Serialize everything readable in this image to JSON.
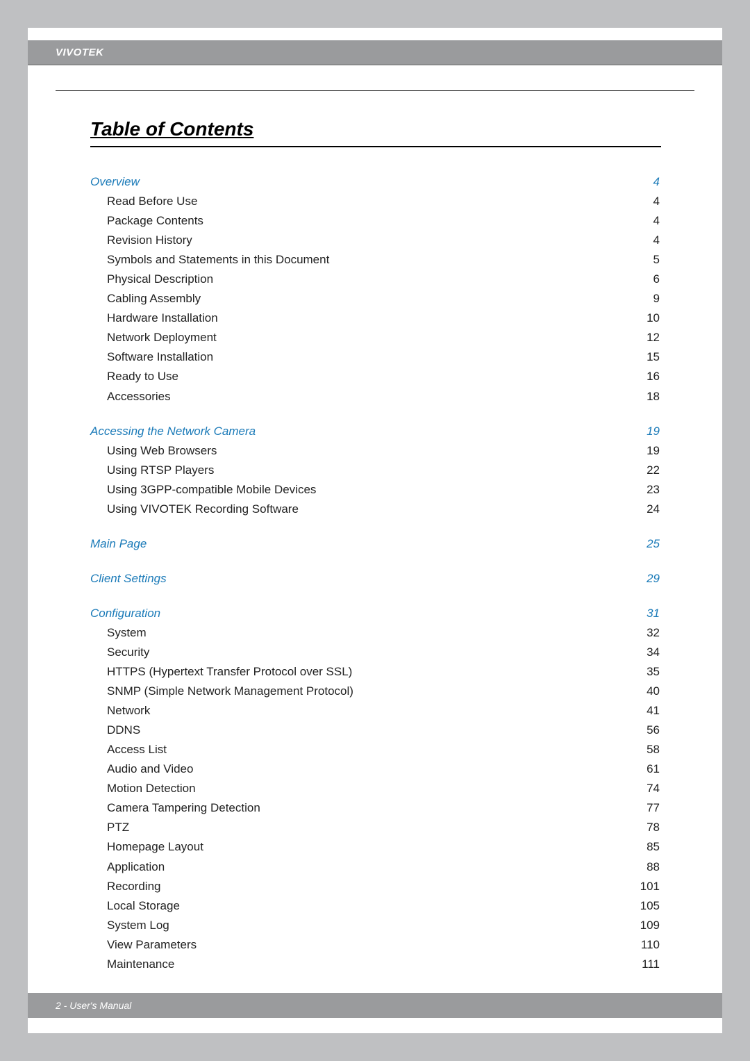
{
  "brand": "VIVOTEK",
  "footer": "2 - User's Manual",
  "toc_title": "Table of Contents",
  "colors": {
    "page_bg": "#bfc0c2",
    "paper_bg": "#ffffff",
    "bar_bg": "#9a9b9d",
    "link_color": "#1a7ab8",
    "text_color": "#222222"
  },
  "typography": {
    "title_fontsize": 28,
    "line_fontsize": 17,
    "brand_fontsize": 15,
    "footer_fontsize": 14,
    "font_family": "Arial"
  },
  "sections": [
    {
      "title": "Overview",
      "page": "4",
      "items": [
        {
          "label": "Read Before Use",
          "page": "4"
        },
        {
          "label": "Package Contents",
          "page": "4"
        },
        {
          "label": "Revision History",
          "page": "4"
        },
        {
          "label": "Symbols and Statements in this Document",
          "page": "5"
        },
        {
          "label": "Physical Description",
          "page": "6"
        },
        {
          "label": "Cabling Assembly",
          "page": "9"
        },
        {
          "label": "Hardware Installation",
          "page": "10"
        },
        {
          "label": "Network Deployment",
          "page": "12"
        },
        {
          "label": "Software Installation",
          "page": "15"
        },
        {
          "label": "Ready to Use",
          "page": "16"
        },
        {
          "label": "Accessories",
          "page": "18"
        }
      ]
    },
    {
      "title": "Accessing the Network Camera",
      "page": "19",
      "items": [
        {
          "label": "Using Web Browsers",
          "page": "19"
        },
        {
          "label": "Using RTSP Players",
          "page": "22"
        },
        {
          "label": "Using 3GPP-compatible Mobile Devices",
          "page": "23"
        },
        {
          "label": "Using VIVOTEK Recording Software",
          "page": "24"
        }
      ]
    },
    {
      "title": "Main Page",
      "page": "25",
      "items": []
    },
    {
      "title": "Client Settings",
      "page": "29",
      "items": []
    },
    {
      "title": "Configuration",
      "page": "31",
      "items": [
        {
          "label": "System",
          "page": "32"
        },
        {
          "label": "Security",
          "page": "34"
        },
        {
          "label": "HTTPS (Hypertext Transfer Protocol over SSL)",
          "page": "35"
        },
        {
          "label": "SNMP (Simple Network Management Protocol)",
          "page": "40"
        },
        {
          "label": "Network",
          "page": "41"
        },
        {
          "label": "DDNS",
          "page": "56"
        },
        {
          "label": "Access List",
          "page": "58"
        },
        {
          "label": "Audio and Video",
          "page": "61"
        },
        {
          "label": "Motion Detection",
          "page": "74"
        },
        {
          "label": "Camera Tampering Detection",
          "page": "77"
        },
        {
          "label": "PTZ",
          "page": "78"
        },
        {
          "label": "Homepage Layout",
          "page": "85"
        },
        {
          "label": "Application",
          "page": "88"
        },
        {
          "label": "Recording",
          "page": "101"
        },
        {
          "label": "Local Storage",
          "page": "105"
        },
        {
          "label": "System Log",
          "page": "109"
        },
        {
          "label": "View Parameters",
          "page": "110"
        },
        {
          "label": "Maintenance",
          "page": "111"
        }
      ]
    }
  ]
}
